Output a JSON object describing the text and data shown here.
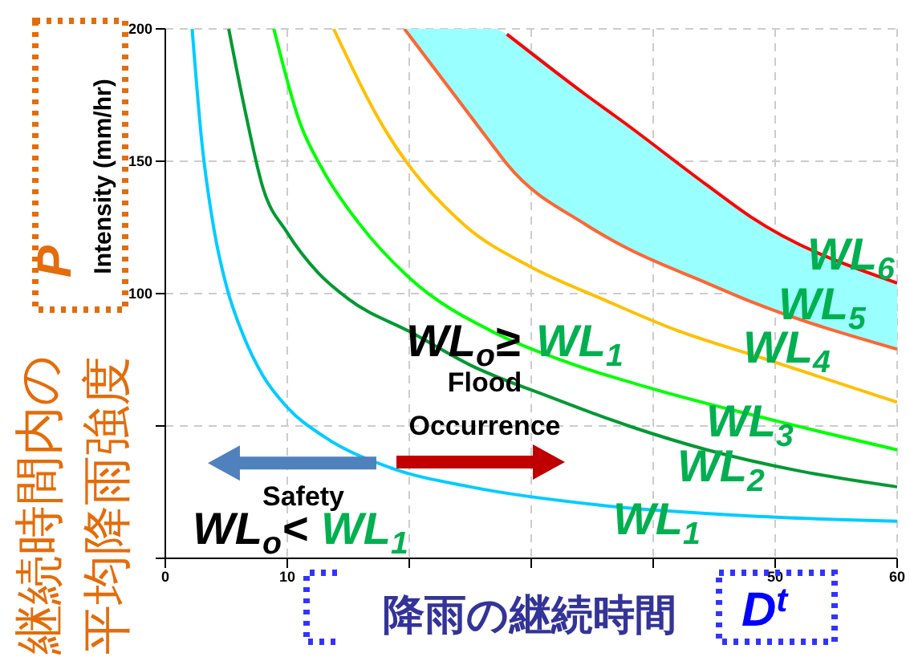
{
  "chart_data": {
    "type": "line",
    "ylabel": "Intensity (mm/hr)",
    "xlabel": "降雨の継続時間",
    "xlim": [
      0,
      60
    ],
    "ylim": [
      0,
      200
    ],
    "xticks": [
      0,
      10,
      {
        "value": 20,
        "label": null
      },
      {
        "value": 30,
        "label": null
      },
      {
        "value": 40,
        "label": null
      },
      50,
      60
    ],
    "yticks": [
      {
        "value": 0,
        "label": null
      },
      {
        "value": 50,
        "label": null
      },
      100,
      150,
      200
    ],
    "grid": true,
    "marker": "none",
    "line_style": "solid",
    "series": [
      {
        "name": "WL$_{1}$",
        "color": "#00ccff",
        "x": [
          2.2,
          3,
          4,
          5,
          6.5,
          8,
          10,
          13,
          18.6,
          25,
          35.8,
          48,
          60
        ],
        "values": [
          200,
          157,
          124,
          103,
          83,
          69,
          57,
          46,
          34,
          27,
          20,
          16,
          14
        ]
      },
      {
        "name": "WL$_{2}$",
        "color": "#009933",
        "x": [
          5.2,
          6.5,
          8,
          10,
          12.5,
          15,
          20.3,
          25,
          31.5,
          38,
          44.4,
          52,
          60
        ],
        "values": [
          200,
          170,
          140,
          123,
          108,
          98,
          85,
          73,
          61,
          50,
          41,
          33,
          27
        ]
      },
      {
        "name": "WL$_{3}$",
        "color": "#00ff00",
        "x": [
          8.9,
          11,
          13,
          15.8,
          20,
          27.1,
          33,
          40,
          50,
          60
        ],
        "values": [
          200,
          165,
          146,
          127,
          106,
          85,
          74,
          64,
          52,
          41
        ]
      },
      {
        "name": "WL$_{4}$",
        "color": "#ffc000",
        "x": [
          13.8,
          18,
          24.5,
          30,
          35.8,
          42,
          48.7,
          60
        ],
        "values": [
          200,
          162,
          126,
          110,
          98,
          86,
          76,
          59
        ]
      },
      {
        "name": "WL$_{5}$",
        "color": "#ff6633",
        "x": [
          19.6,
          27,
          28,
          34.5,
          37.5,
          44.4,
          48,
          60
        ],
        "values": [
          200,
          155,
          149,
          126,
          118,
          104,
          97,
          79
        ],
        "lower": [
          200,
          155,
          149,
          126,
          118,
          104,
          97,
          79
        ],
        "upper": [
          200,
          200,
          198,
          175,
          165,
          141,
          129,
          104
        ]
      },
      {
        "name": "WL$_{6}$",
        "color": "#ff0000",
        "x": [
          28,
          34.5,
          37.5,
          44.4,
          48,
          60
        ],
        "values": [
          198,
          175,
          165,
          141,
          129,
          104
        ]
      }
    ],
    "annotations": [
      "WL$_{o}$≥",
      "WL$_{1}$",
      "Flood Occurrence",
      "Safety",
      {
        "text": "WL$_{o}$<",
        "x": 17.3,
        "y": 36
      },
      "WL$_{1}$",
      "P",
      "継続時間内の平均降雨強度",
      "D$^{t}$"
    ]
  }
}
